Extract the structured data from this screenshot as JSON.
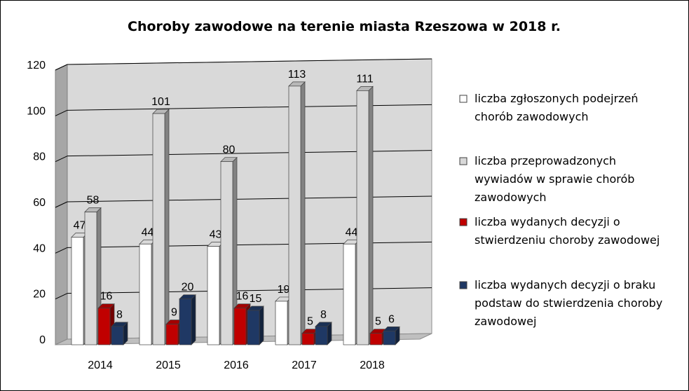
{
  "chart_data": {
    "type": "bar",
    "title": "Choroby zawodowe na terenie miasta Rzeszowa w 2018 r.",
    "xlabel": "",
    "ylabel": "",
    "categories": [
      "2014",
      "2015",
      "2016",
      "2017",
      "2018"
    ],
    "ylim": [
      0,
      120
    ],
    "yticks": [
      "0",
      "20",
      "40",
      "60",
      "80",
      "100",
      "120"
    ],
    "grid": true,
    "legend_position": "right",
    "series": [
      {
        "name": "liczba zgłoszonych podejrzeń chorób zawodowych",
        "legend_lines": [
          "liczba zgłoszonych podejrzeń",
          "chorób zawodowych"
        ],
        "color": "#ffffff",
        "values": [
          47,
          44,
          43,
          19,
          44
        ]
      },
      {
        "name": "liczba przeprowadzonych wywiadów w sprawie chorób zawodowych",
        "legend_lines": [
          "liczba przeprowadzonych",
          "wywiadów w sprawie chorób",
          "zawodowych"
        ],
        "color": "#d9d9d9",
        "values": [
          58,
          101,
          80,
          113,
          111
        ]
      },
      {
        "name": "liczba wydanych decyzji o stwierdzeniu choroby zawodowej",
        "legend_lines": [
          "liczba wydanych decyzji o",
          "stwierdzeniu choroby zawodowej"
        ],
        "color": "#c00000",
        "values": [
          16,
          9,
          16,
          5,
          5
        ]
      },
      {
        "name": "liczba wydanych decyzji o braku podstaw do stwierdzenia choroby zawodowej",
        "legend_lines": [
          "liczba wydanych decyzji o braku",
          "podstaw do stwierdzenia choroby",
          "zawodowej"
        ],
        "color": "#1f3864",
        "values": [
          8,
          20,
          15,
          8,
          6
        ]
      }
    ]
  }
}
